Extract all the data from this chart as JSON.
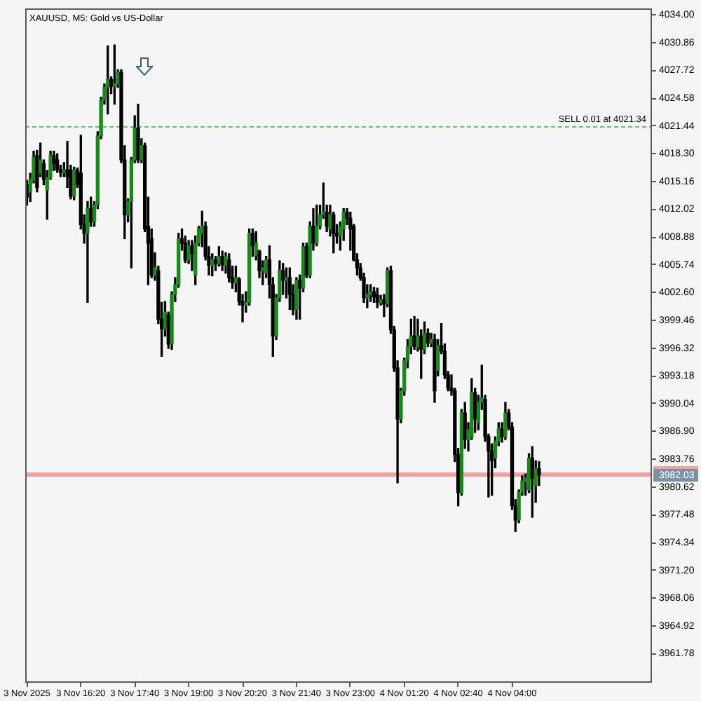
{
  "chart_data": {
    "type": "candlestick",
    "title": "XAUUSD, M5: Gold vs US-Dollar",
    "categories": [
      "3 Nov 2025",
      null,
      null,
      null,
      null,
      null,
      null,
      null,
      null,
      null,
      null,
      null,
      null,
      null,
      null,
      null,
      "3 Nov 16:20",
      null,
      null,
      null,
      null,
      null,
      null,
      null,
      null,
      null,
      null,
      null,
      null,
      null,
      null,
      null,
      "3 Nov 17:40",
      null,
      null,
      null,
      null,
      null,
      null,
      null,
      null,
      null,
      null,
      null,
      null,
      null,
      null,
      null,
      "3 Nov 19:00",
      null,
      null,
      null,
      null,
      null,
      null,
      null,
      null,
      null,
      null,
      null,
      null,
      null,
      null,
      null,
      "3 Nov 20:20",
      null,
      null,
      null,
      null,
      null,
      null,
      null,
      null,
      null,
      null,
      null,
      null,
      null,
      null,
      null,
      "3 Nov 21:40",
      null,
      null,
      null,
      null,
      null,
      null,
      null,
      null,
      null,
      null,
      null,
      null,
      null,
      null,
      null,
      "3 Nov 23:00",
      null,
      null,
      null,
      null,
      null,
      null,
      null,
      null,
      null,
      null,
      null,
      null,
      null,
      null,
      null,
      "4 Nov 01:20",
      null,
      null,
      null,
      null,
      null,
      null,
      null,
      null,
      null,
      null,
      null,
      null,
      null,
      null,
      null,
      "4 Nov 02:40",
      null,
      null,
      null,
      null,
      null,
      null,
      null,
      null,
      null,
      null,
      null,
      null,
      null,
      null,
      null,
      "4 Nov 04:00",
      null,
      null,
      null,
      null,
      null,
      null,
      null,
      null,
      null,
      null,
      null,
      null,
      null,
      null,
      null,
      null,
      null,
      null,
      null,
      null,
      null,
      null,
      null,
      null,
      null,
      null,
      null,
      null,
      null,
      null,
      null,
      null,
      null,
      null,
      null,
      null,
      null,
      null,
      null,
      null,
      null
    ],
    "ohlc": [
      [
        4014.8,
        4015.3,
        4012.5,
        4013.4
      ],
      [
        4014.0,
        4016.1,
        4012.9,
        4015.4
      ],
      [
        4015.3,
        4018.6,
        4015.0,
        4017.9
      ],
      [
        4018.1,
        4018.7,
        4014.0,
        4014.5
      ],
      [
        4016.1,
        4019.5,
        4015.7,
        4017.6
      ],
      [
        4017.2,
        4017.6,
        4014.8,
        4015.4
      ],
      [
        4014.2,
        4016.4,
        4010.9,
        4015.6
      ],
      [
        4015.6,
        4018.6,
        4015.4,
        4018.1
      ],
      [
        4018.1,
        4018.6,
        4016.4,
        4017.2
      ],
      [
        4017.6,
        4018.3,
        4016.2,
        4016.5
      ],
      [
        4016.5,
        4017.0,
        4015.7,
        4016.2
      ],
      [
        4016.2,
        4017.3,
        4015.7,
        4016.5
      ],
      [
        4016.5,
        4019.7,
        4014.5,
        4015.7
      ],
      [
        4016.4,
        4017.0,
        4013.2,
        4013.5
      ],
      [
        4013.5,
        4016.8,
        4013.1,
        4016.5
      ],
      [
        4016.4,
        4016.7,
        4014.5,
        4014.8
      ],
      [
        4016.1,
        4020.4,
        4009.8,
        4010.3
      ],
      [
        4010.3,
        4011.4,
        4008.2,
        4009.3
      ],
      [
        4009.3,
        4012.9,
        4001.5,
        4012.1
      ],
      [
        4012.1,
        4013.4,
        4010.1,
        4010.6
      ],
      [
        4010.6,
        4012.9,
        4010.1,
        4012.5
      ],
      [
        4012.5,
        4020.8,
        4012.1,
        4020.3
      ],
      [
        4020.3,
        4024.7,
        4020.0,
        4024.4
      ],
      [
        4024.4,
        4026.2,
        4023.9,
        4025.8
      ],
      [
        4025.8,
        4030.5,
        4022.8,
        4026.7
      ],
      [
        4026.7,
        4027.0,
        4025.1,
        4025.9
      ],
      [
        4025.9,
        4030.6,
        4023.9,
        4026.2
      ],
      [
        4026.2,
        4027.8,
        4025.8,
        4027.5
      ],
      [
        4027.5,
        4027.8,
        4017.3,
        4017.6
      ],
      [
        4017.6,
        4019.2,
        4008.7,
        4011.4
      ],
      [
        4011.4,
        4013.2,
        4010.6,
        4012.9
      ],
      [
        4012.9,
        4017.9,
        4005.4,
        4017.6
      ],
      [
        4017.6,
        4022.6,
        4017.3,
        4021.2
      ],
      [
        4021.2,
        4023.9,
        4017.3,
        4017.6
      ],
      [
        4017.6,
        4020.0,
        4017.3,
        4019.2
      ],
      [
        4019.2,
        4019.5,
        4009.5,
        4009.8
      ],
      [
        4010.1,
        4013.4,
        4003.5,
        4008.2
      ],
      [
        4008.7,
        4009.8,
        4004.3,
        4004.6
      ],
      [
        4004.6,
        4007.1,
        4004.0,
        4005.4
      ],
      [
        4005.1,
        4005.6,
        3999.1,
        3999.6
      ],
      [
        3999.6,
        4001.5,
        3995.4,
        3998.5
      ],
      [
        3998.5,
        4001.6,
        3997.7,
        4000.4
      ],
      [
        4000.1,
        4000.4,
        3996.3,
        3996.8
      ],
      [
        3996.8,
        4002.7,
        3996.2,
        4002.4
      ],
      [
        4002.4,
        4004.3,
        4001.6,
        4003.5
      ],
      [
        4003.5,
        4009.3,
        4003.2,
        4008.7
      ],
      [
        4008.7,
        4009.8,
        4007.4,
        4008.2
      ],
      [
        4008.2,
        4009.0,
        4006.0,
        4006.3
      ],
      [
        4006.3,
        4008.5,
        4005.9,
        4007.9
      ],
      [
        4007.9,
        4008.5,
        4005.1,
        4007.0
      ],
      [
        4004.6,
        4009.0,
        4003.5,
        4008.2
      ],
      [
        4008.2,
        4010.1,
        4007.9,
        4009.8
      ],
      [
        4009.3,
        4011.8,
        4007.8,
        4010.1
      ],
      [
        4010.1,
        4010.6,
        4006.3,
        4006.7
      ],
      [
        4006.7,
        4007.8,
        4004.6,
        4005.7
      ],
      [
        4005.7,
        4007.0,
        4004.5,
        4006.3
      ],
      [
        4006.3,
        4006.7,
        4005.1,
        4005.9
      ],
      [
        4005.9,
        4007.8,
        4005.6,
        4006.7
      ],
      [
        4006.7,
        4007.3,
        4005.1,
        4005.7
      ],
      [
        4005.7,
        4007.1,
        4004.8,
        4006.7
      ],
      [
        4006.3,
        4007.0,
        4003.8,
        4004.3
      ],
      [
        4004.3,
        4005.6,
        4003.1,
        4003.7
      ],
      [
        4003.7,
        4005.6,
        4002.7,
        4004.3
      ],
      [
        4004.1,
        4004.3,
        4001.2,
        4001.6
      ],
      [
        4001.6,
        4002.4,
        3999.3,
        4001.2
      ],
      [
        4001.2,
        4002.7,
        4000.4,
        4001.5
      ],
      [
        4001.5,
        4009.8,
        4001.2,
        4009.3
      ],
      [
        4009.3,
        4009.8,
        4006.7,
        4007.9
      ],
      [
        4006.8,
        4009.5,
        4006.3,
        4008.2
      ],
      [
        4007.3,
        4007.4,
        4004.3,
        4005.1
      ],
      [
        4005.1,
        4006.2,
        4003.5,
        4005.4
      ],
      [
        4004.8,
        4006.7,
        4004.3,
        4006.3
      ],
      [
        4006.3,
        4007.9,
        4002.0,
        4003.5
      ],
      [
        4003.5,
        4004.3,
        3995.4,
        3997.7
      ],
      [
        3997.7,
        4002.4,
        3997.3,
        4002.0
      ],
      [
        4002.0,
        4006.2,
        4001.6,
        4005.1
      ],
      [
        4005.1,
        4005.9,
        4002.4,
        4004.0
      ],
      [
        4004.0,
        4005.4,
        4002.0,
        4004.3
      ],
      [
        4004.3,
        4005.4,
        4000.7,
        4002.4
      ],
      [
        4002.4,
        4003.5,
        4000.1,
        4000.7
      ],
      [
        4000.7,
        4004.3,
        3999.6,
        4004.0
      ],
      [
        4004.0,
        4004.6,
        3999.6,
        4003.1
      ],
      [
        4003.1,
        4008.2,
        4002.7,
        4007.8
      ],
      [
        4007.8,
        4008.2,
        4004.3,
        4004.6
      ],
      [
        4004.6,
        4010.6,
        4004.3,
        4010.1
      ],
      [
        4010.1,
        4012.1,
        4007.4,
        4008.2
      ],
      [
        4008.2,
        4012.5,
        4007.9,
        4010.1
      ],
      [
        4010.1,
        4012.5,
        4009.8,
        4011.4
      ],
      [
        4011.4,
        4015.0,
        4011.0,
        4011.7
      ],
      [
        4011.7,
        4012.5,
        4009.5,
        4010.1
      ],
      [
        4009.8,
        4012.5,
        4009.0,
        4011.4
      ],
      [
        4011.4,
        4011.7,
        4007.1,
        4009.3
      ],
      [
        4009.3,
        4010.3,
        4008.2,
        4009.0
      ],
      [
        4009.0,
        4010.6,
        4007.4,
        4010.1
      ],
      [
        4009.8,
        4012.1,
        4008.5,
        4011.7
      ],
      [
        4011.7,
        4012.1,
        4010.3,
        4011.0
      ],
      [
        4011.0,
        4011.7,
        4007.4,
        4009.8
      ],
      [
        4010.1,
        4010.3,
        4006.2,
        4006.3
      ],
      [
        4006.3,
        4007.0,
        4004.6,
        4005.4
      ],
      [
        4005.4,
        4005.9,
        4004.0,
        4004.3
      ],
      [
        4004.3,
        4004.8,
        4001.5,
        4002.0
      ],
      [
        4002.0,
        4003.5,
        4000.9,
        4002.4
      ],
      [
        4002.4,
        4003.5,
        4001.6,
        4002.7
      ],
      [
        4002.7,
        4003.2,
        4001.5,
        4002.1
      ],
      [
        4002.3,
        4003.1,
        4000.9,
        4001.5
      ],
      [
        4001.5,
        4002.3,
        4001.2,
        4001.8
      ],
      [
        4001.8,
        4002.4,
        3999.9,
        4001.3
      ],
      [
        4001.3,
        4005.4,
        4001.0,
        4005.1
      ],
      [
        4005.1,
        4005.6,
        3998.0,
        3998.4
      ],
      [
        3998.4,
        3998.8,
        3993.7,
        3994.1
      ],
      [
        3994.1,
        3994.9,
        3981.1,
        3988.3
      ],
      [
        3988.3,
        3991.8,
        3987.9,
        3991.5
      ],
      [
        3991.5,
        3995.2,
        3991.0,
        3994.9
      ],
      [
        3994.9,
        3997.3,
        3994.1,
        3996.5
      ],
      [
        3996.5,
        3999.6,
        3995.7,
        3997.7
      ],
      [
        3997.7,
        3999.9,
        3996.2,
        3996.5
      ],
      [
        3996.5,
        3999.6,
        3996.0,
        3997.7
      ],
      [
        3997.7,
        3998.4,
        3992.9,
        3996.2
      ],
      [
        3996.2,
        3999.3,
        3995.7,
        3998.0
      ],
      [
        3998.0,
        3998.5,
        3996.5,
        3996.9
      ],
      [
        3996.9,
        3998.0,
        3996.5,
        3997.3
      ],
      [
        3997.3,
        3997.9,
        3990.2,
        3991.5
      ],
      [
        3993.8,
        3997.3,
        3993.2,
        3996.6
      ],
      [
        3996.6,
        3999.1,
        3995.7,
        3996.0
      ],
      [
        3996.0,
        3996.8,
        3992.9,
        3993.3
      ],
      [
        3993.3,
        3993.7,
        3991.5,
        3991.8
      ],
      [
        3991.8,
        3993.3,
        3991.0,
        3991.5
      ],
      [
        3991.5,
        3991.8,
        3983.5,
        3984.3
      ],
      [
        3984.3,
        3985.0,
        3978.5,
        3980.0
      ],
      [
        3980.0,
        3989.4,
        3979.7,
        3989.0
      ],
      [
        3989.0,
        3990.2,
        3985.0,
        3986.0
      ],
      [
        3986.0,
        3987.9,
        3984.7,
        3987.1
      ],
      [
        3986.3,
        3992.9,
        3986.0,
        3991.3
      ],
      [
        3991.3,
        3991.8,
        3986.8,
        3988.3
      ],
      [
        3987.9,
        3991.0,
        3987.1,
        3990.2
      ],
      [
        3990.2,
        3994.4,
        3989.4,
        3990.7
      ],
      [
        3990.5,
        3991.0,
        3985.8,
        3986.3
      ],
      [
        3986.3,
        3986.6,
        3979.5,
        3984.7
      ],
      [
        3984.7,
        3985.5,
        3979.7,
        3983.6
      ],
      [
        3983.9,
        3986.3,
        3982.8,
        3985.8
      ],
      [
        3985.8,
        3987.9,
        3985.3,
        3987.2
      ],
      [
        3987.2,
        3987.9,
        3985.7,
        3986.3
      ],
      [
        3986.3,
        3990.2,
        3986.0,
        3989.0
      ],
      [
        3989.0,
        3989.4,
        3987.1,
        3987.4
      ],
      [
        3987.4,
        3987.9,
        3978.1,
        3978.5
      ],
      [
        3978.5,
        3979.2,
        3975.6,
        3976.9
      ],
      [
        3976.9,
        3980.3,
        3976.6,
        3980.0
      ],
      [
        3980.0,
        3981.9,
        3979.7,
        3981.3
      ],
      [
        3981.3,
        3982.1,
        3979.7,
        3981.6
      ],
      [
        3980.3,
        3984.4,
        3980.0,
        3983.9
      ],
      [
        3983.9,
        3985.2,
        3977.2,
        3981.6
      ],
      [
        3980.8,
        3983.6,
        3978.9,
        3982.7
      ],
      [
        3982.7,
        3983.5,
        3980.8,
        3982.03
      ],
      null,
      null,
      null,
      null,
      null,
      null,
      null,
      null,
      null,
      null,
      null,
      null,
      null,
      null,
      null,
      null,
      null,
      null,
      null,
      null,
      null,
      null,
      null,
      null,
      null,
      null,
      null,
      null,
      null,
      null,
      null,
      null,
      null
    ],
    "color": "#000000",
    "colors": [
      "#000000",
      "#168a16",
      "#168a16",
      "#000000",
      "#168a16",
      "#000000",
      "#168a16",
      "#168a16",
      "#000000",
      "#000000",
      "#000000",
      "#168a16",
      "#000000",
      "#000000",
      "#168a16",
      "#000000",
      "#000000",
      "#000000",
      "#168a16",
      "#000000",
      "#168a16",
      "#168a16",
      "#168a16",
      "#168a16",
      "#168a16",
      "#000000",
      "#168a16",
      "#168a16",
      "#000000",
      "#000000",
      "#168a16",
      "#168a16",
      "#168a16",
      "#000000",
      "#168a16",
      "#000000",
      "#000000",
      "#000000",
      "#168a16",
      "#000000",
      "#000000",
      "#168a16",
      "#000000",
      "#168a16",
      "#168a16",
      "#168a16",
      "#000000",
      "#000000",
      "#168a16",
      "#000000",
      "#168a16",
      "#168a16",
      "#168a16",
      "#000000",
      "#000000",
      "#168a16",
      "#000000",
      "#168a16",
      "#000000",
      "#168a16",
      "#000000",
      "#000000",
      "#168a16",
      "#000000",
      "#000000",
      "#168a16",
      "#168a16",
      "#000000",
      "#168a16",
      "#000000",
      "#168a16",
      "#168a16",
      "#000000",
      "#000000",
      "#168a16",
      "#168a16",
      "#000000",
      "#168a16",
      "#000000",
      "#000000",
      "#168a16",
      "#000000",
      "#168a16",
      "#000000",
      "#168a16",
      "#000000",
      "#168a16",
      "#168a16",
      "#168a16",
      "#000000",
      "#168a16",
      "#000000",
      "#000000",
      "#168a16",
      "#168a16",
      "#000000",
      "#000000",
      "#000000",
      "#000000",
      "#000000",
      "#000000",
      "#168a16",
      "#168a16",
      "#000000",
      "#000000",
      "#168a16",
      "#000000",
      "#168a16",
      "#000000",
      "#000000",
      "#000000",
      "#168a16",
      "#168a16",
      "#168a16",
      "#168a16",
      "#000000",
      "#168a16",
      "#000000",
      "#168a16",
      "#000000",
      "#168a16",
      "#000000",
      "#168a16",
      "#000000",
      "#000000",
      "#000000",
      "#000000",
      "#000000",
      "#000000",
      "#168a16",
      "#000000",
      "#168a16",
      "#168a16",
      "#000000",
      "#168a16",
      "#168a16",
      "#000000",
      "#000000",
      "#000000",
      "#168a16",
      "#168a16",
      "#000000",
      "#168a16",
      "#000000",
      "#000000",
      "#000000",
      "#168a16",
      "#168a16",
      "#168a16",
      "#168a16",
      "#000000",
      "#168a16",
      "#000000",
      null,
      null,
      null,
      null,
      null,
      null,
      null,
      null,
      null,
      null,
      null,
      null,
      null,
      null,
      null,
      null,
      null,
      null,
      null,
      null,
      null,
      null,
      null,
      null,
      null,
      null,
      null,
      null,
      null,
      null,
      null,
      null,
      null
    ],
    "ylim": [
      3958.5,
      4034.7
    ],
    "yticks": [
      {
        "value": 4034,
        "label": "4034.00"
      },
      4030.86,
      4027.72,
      4024.58,
      4021.44,
      {
        "value": 4018.3,
        "label": "4018.30"
      },
      4015.16,
      4012.02,
      4008.88,
      4005.74,
      {
        "value": 4002.6,
        "label": "4002.60"
      },
      3999.46,
      3996.32,
      3993.18,
      3990.04,
      {
        "value": 3986.9,
        "label": "3986.90"
      },
      3983.76,
      3980.62,
      3977.48,
      3974.34,
      {
        "value": 3971.2,
        "label": "3971.20"
      },
      3968.06,
      3964.92,
      3961.78
    ],
    "ref_lines": [
      {
        "axis": "y",
        "value": 4021.34,
        "label": "SELL 0.01 at 4021.34",
        "color": "#5bc85b",
        "line_style": "dashed"
      },
      {
        "axis": "y",
        "value": 3982.03,
        "label": "3982.03",
        "color": "#f2a0a0",
        "line_style": "solid"
      }
    ]
  }
}
